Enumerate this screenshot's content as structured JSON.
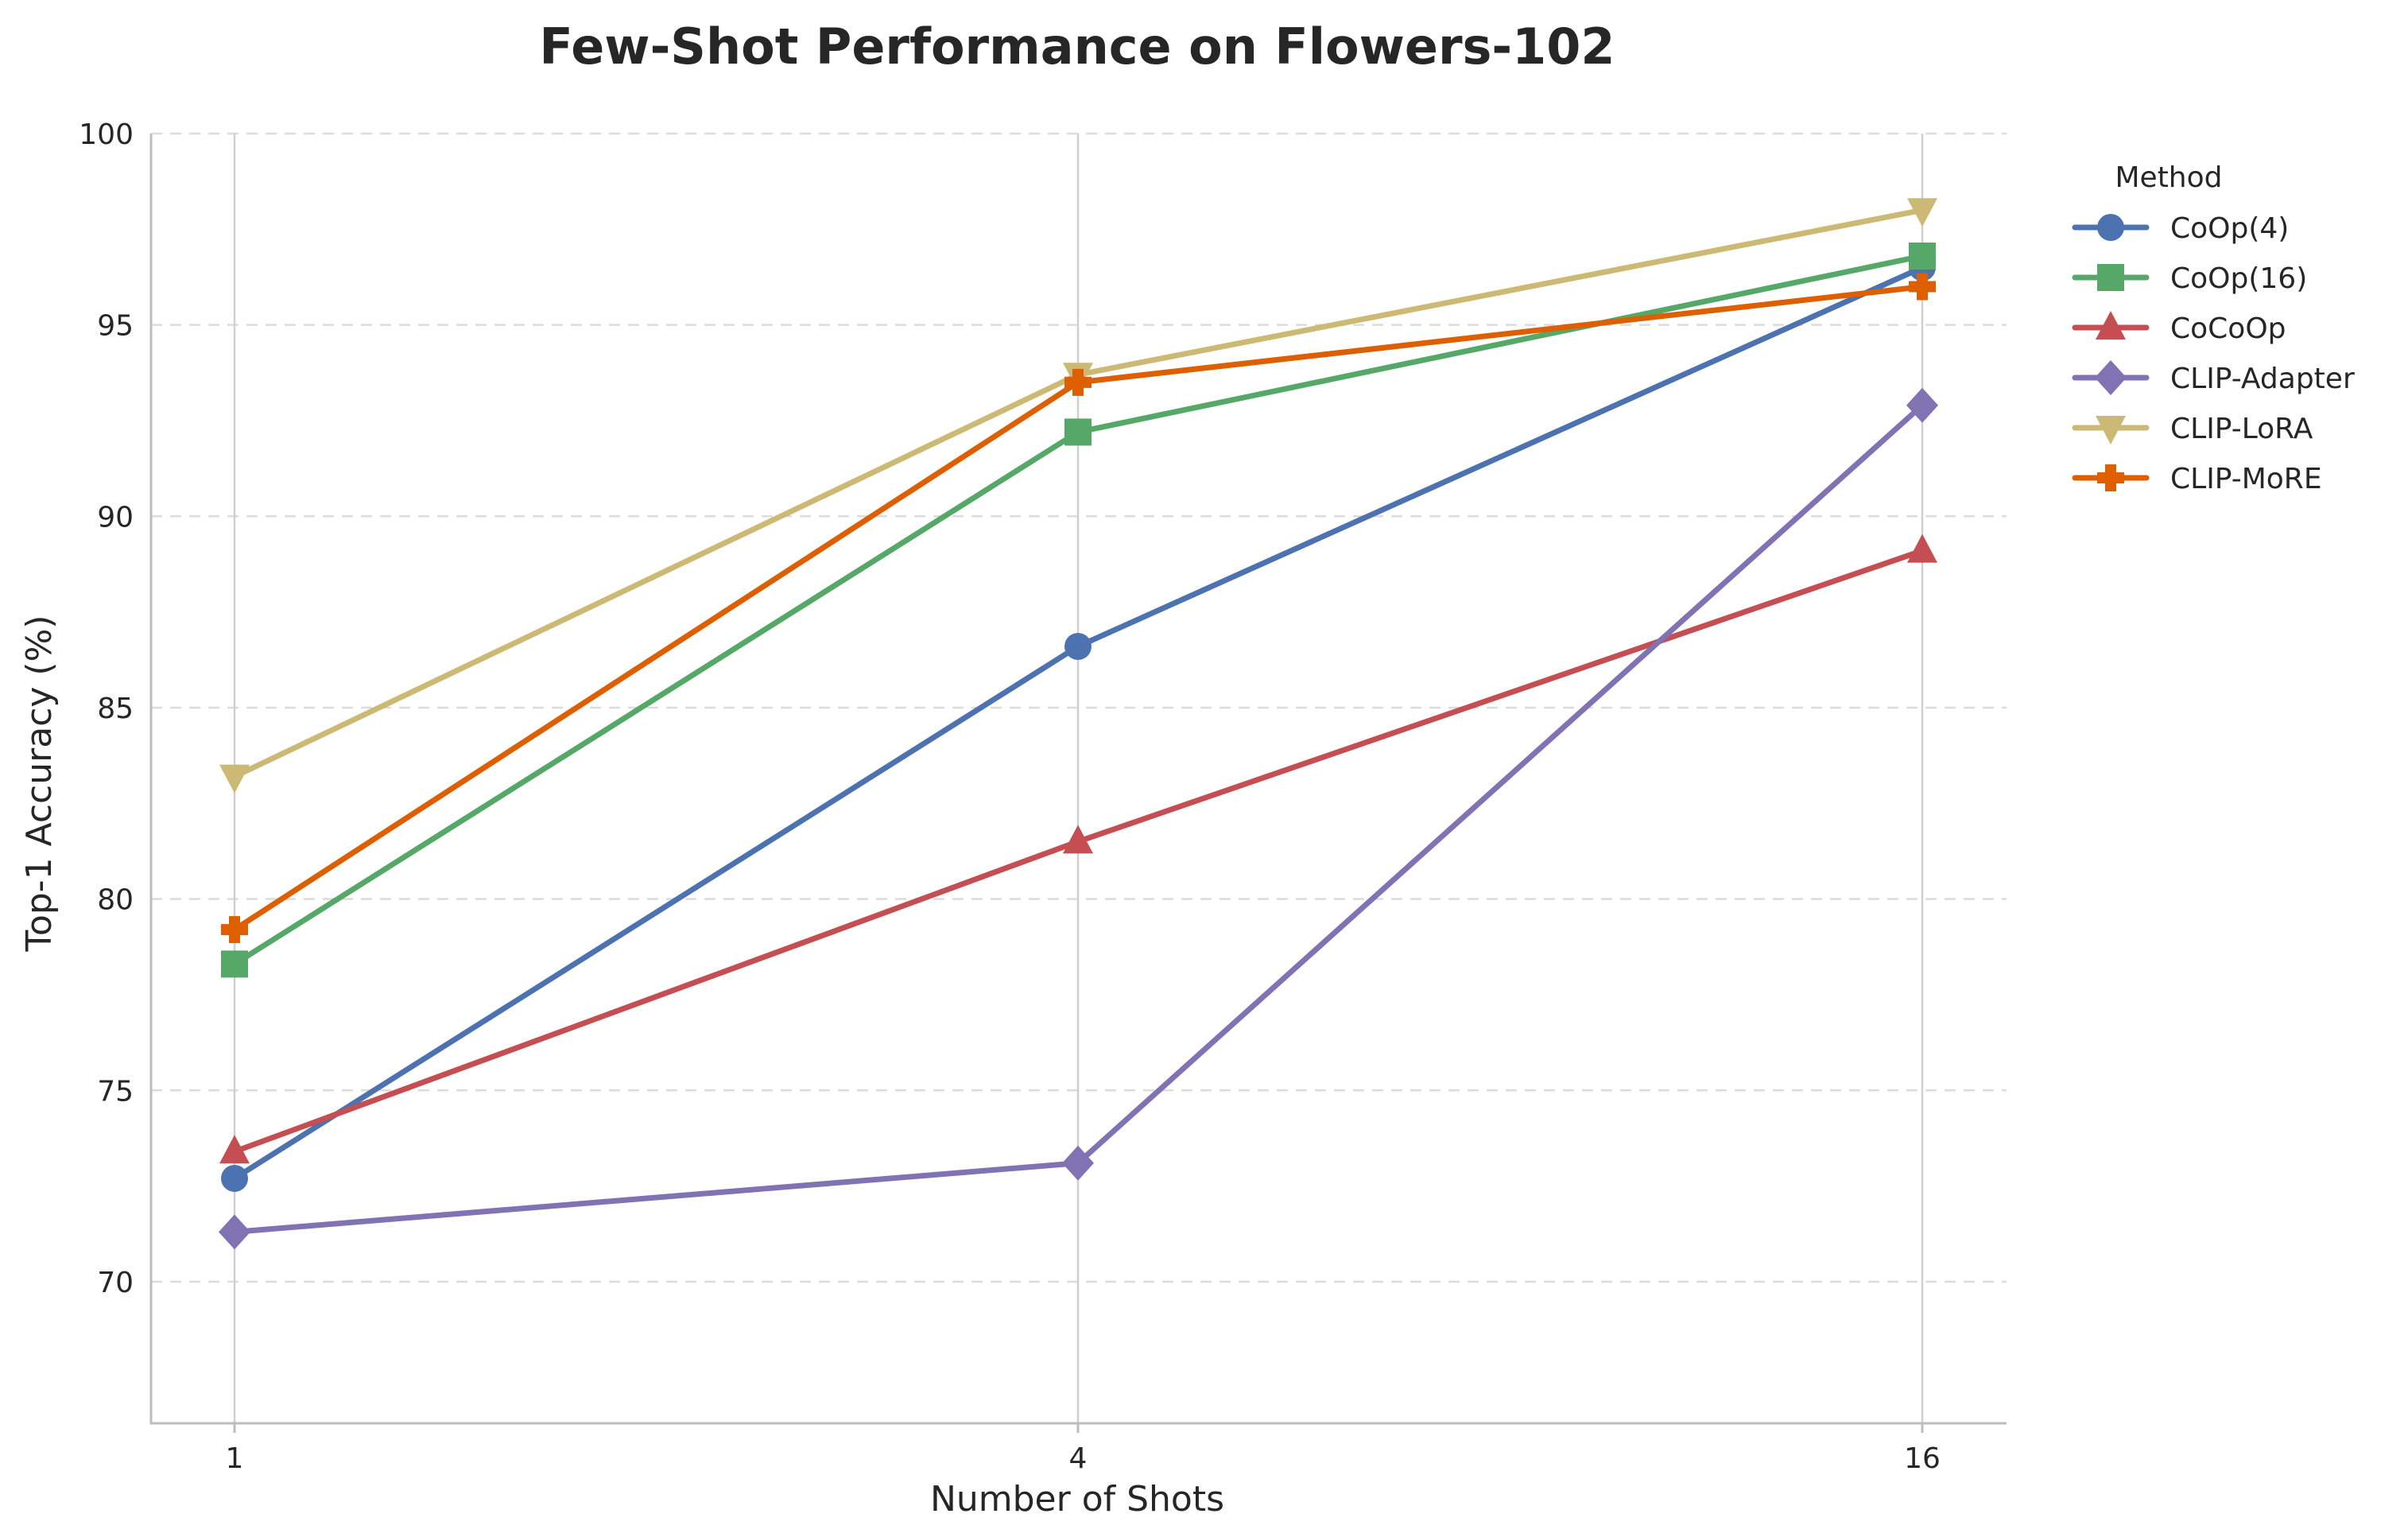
{
  "chart_data": {
    "type": "line",
    "title": "Few-Shot Performance on Flowers-102",
    "xlabel": "Number of Shots",
    "ylabel": "Top-1 Accuracy (%)",
    "x": [
      1,
      4,
      16
    ],
    "x_ticks": [
      "1",
      "4",
      "16"
    ],
    "ylim": [
      66.3,
      100
    ],
    "y_ticks": [
      70,
      75,
      80,
      85,
      90,
      95,
      100
    ],
    "grid": true,
    "legend": {
      "title": "Method",
      "placement": "outside-right"
    },
    "series": [
      {
        "name": "CoOp(4)",
        "color": "#4C72B0",
        "marker": "circle",
        "values": [
          72.7,
          86.6,
          96.5
        ]
      },
      {
        "name": "CoOp(16)",
        "color": "#55A868",
        "marker": "square",
        "values": [
          78.3,
          92.2,
          96.8
        ]
      },
      {
        "name": "CoCoOp",
        "color": "#C44E52",
        "marker": "triangle-up",
        "values": [
          73.4,
          81.5,
          89.1
        ]
      },
      {
        "name": "CLIP-Adapter",
        "color": "#8172B3",
        "marker": "diamond",
        "values": [
          71.3,
          73.1,
          92.9
        ]
      },
      {
        "name": "CLIP-LoRA",
        "color": "#CCB974",
        "marker": "triangle-down",
        "values": [
          83.2,
          93.7,
          98.0
        ]
      },
      {
        "name": "CLIP-MoRE",
        "color": "#DD5F00",
        "marker": "plus",
        "values": [
          79.2,
          93.5,
          96.0
        ]
      }
    ]
  }
}
